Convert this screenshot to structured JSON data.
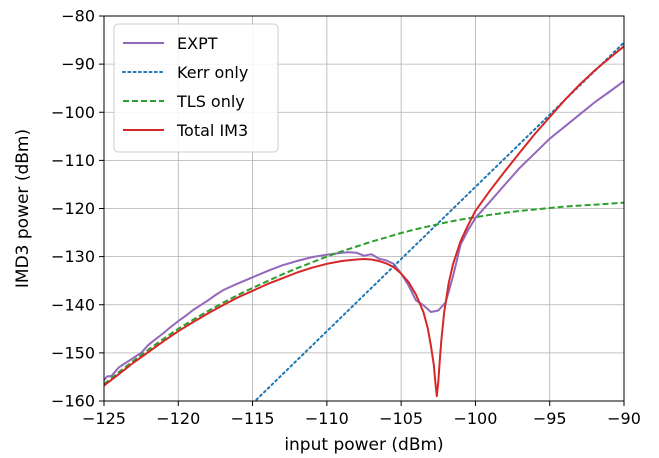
{
  "chart_data": {
    "type": "line",
    "xlabel": "input power (dBm)",
    "ylabel": "IMD3 power (dBm)",
    "xlim": [
      -125,
      -90
    ],
    "ylim": [
      -160,
      -80
    ],
    "xticks": [
      -125,
      -120,
      -115,
      -110,
      -105,
      -100,
      -95,
      -90
    ],
    "yticks": [
      -160,
      -150,
      -140,
      -130,
      -120,
      -110,
      -100,
      -90,
      -80
    ],
    "xtick_labels": [
      "−125",
      "−120",
      "−115",
      "−110",
      "−105",
      "−100",
      "−95",
      "−90"
    ],
    "ytick_labels": [
      "−160",
      "−150",
      "−140",
      "−130",
      "−120",
      "−110",
      "−100",
      "−90",
      "−80"
    ],
    "grid": true,
    "legend_position": "top-left",
    "series": [
      {
        "name": "EXPT",
        "color": "#9467bd",
        "style": "solid",
        "x": [
          -125,
          -124.8,
          -124.5,
          -124,
          -123.5,
          -123,
          -122.5,
          -122,
          -121.5,
          -121,
          -120.5,
          -120,
          -119.5,
          -119,
          -118.5,
          -118,
          -117.5,
          -117,
          -116.5,
          -116,
          -115,
          -114,
          -113,
          -112,
          -111,
          -110,
          -109,
          -108.5,
          -108,
          -107.5,
          -107,
          -106.5,
          -106,
          -105.5,
          -105,
          -104.5,
          -104,
          -103.5,
          -103,
          -102.5,
          -102,
          -101.5,
          -101,
          -100.5,
          -100,
          -99,
          -98,
          -97,
          -96,
          -95,
          -94,
          -93,
          -92,
          -91,
          -90
        ],
        "y": [
          -155.7,
          -154.9,
          -154.8,
          -153,
          -152,
          -151,
          -150,
          -148.3,
          -147.1,
          -145.9,
          -144.6,
          -143.4,
          -142.3,
          -141.1,
          -140.1,
          -139.1,
          -138,
          -137,
          -136.3,
          -135.6,
          -134.3,
          -133,
          -131.8,
          -130.9,
          -130.1,
          -129.6,
          -129.2,
          -129.1,
          -129.2,
          -129.8,
          -129.5,
          -130.4,
          -130.8,
          -131.5,
          -133.5,
          -136,
          -139.1,
          -140.1,
          -141.5,
          -141.2,
          -139.5,
          -134,
          -127.5,
          -124.5,
          -122,
          -118.5,
          -115,
          -111.5,
          -108.5,
          -105.5,
          -103,
          -100.5,
          -98,
          -95.8,
          -93.5
        ]
      },
      {
        "name": "Kerr only",
        "color": "#1f77b4",
        "style": "dotted",
        "x": [
          -115,
          -90
        ],
        "y": [
          -160.5,
          -85.5
        ]
      },
      {
        "name": "TLS only",
        "color": "#2ca02c",
        "style": "dashed",
        "x": [
          -125,
          -124,
          -123,
          -122,
          -121,
          -120,
          -119,
          -118,
          -117,
          -116,
          -115,
          -114,
          -113,
          -112,
          -111,
          -110,
          -109,
          -108,
          -107,
          -106,
          -105,
          -104,
          -103,
          -102,
          -101,
          -100,
          -99,
          -98,
          -97,
          -96,
          -95,
          -94,
          -93,
          -92,
          -91,
          -90
        ],
        "y": [
          -156.5,
          -154,
          -151.6,
          -149.3,
          -147.1,
          -145,
          -143.1,
          -141.3,
          -139.6,
          -138,
          -136.5,
          -135.1,
          -133.7,
          -132.4,
          -131.2,
          -130,
          -128.9,
          -127.9,
          -126.9,
          -126,
          -125.1,
          -124.3,
          -123.6,
          -122.9,
          -122.3,
          -121.8,
          -121.3,
          -120.9,
          -120.5,
          -120.2,
          -119.9,
          -119.6,
          -119.4,
          -119.2,
          -119,
          -118.8
        ]
      },
      {
        "name": "Total IM3",
        "color": "#d62728",
        "style": "solid",
        "x": [
          -125,
          -124,
          -123,
          -122,
          -121,
          -120,
          -119,
          -118,
          -117,
          -116,
          -115,
          -114,
          -113,
          -112,
          -111,
          -110,
          -109,
          -108,
          -107.5,
          -107,
          -106.5,
          -106,
          -105.5,
          -105,
          -104.5,
          -104,
          -103.5,
          -103.2,
          -103,
          -102.8,
          -102.7,
          -102.6,
          -102.5,
          -102.4,
          -102.3,
          -102.1,
          -101.8,
          -101.5,
          -101,
          -100.5,
          -100,
          -99,
          -98,
          -97,
          -96,
          -95,
          -94,
          -93,
          -92,
          -91,
          -90
        ],
        "y": [
          -156.8,
          -154.4,
          -152,
          -149.8,
          -147.6,
          -145.5,
          -143.6,
          -141.8,
          -140.1,
          -138.5,
          -137.1,
          -135.7,
          -134.5,
          -133.3,
          -132.3,
          -131.5,
          -130.9,
          -130.6,
          -130.5,
          -130.6,
          -130.9,
          -131.4,
          -132.2,
          -133.5,
          -135.3,
          -137.9,
          -141.5,
          -145,
          -148.5,
          -152.5,
          -156,
          -159,
          -156,
          -151.5,
          -147.5,
          -141.5,
          -135.5,
          -131.5,
          -126.8,
          -123.5,
          -120.5,
          -116.2,
          -112.2,
          -108.3,
          -104.5,
          -101,
          -97.5,
          -94.3,
          -91.4,
          -88.8,
          -86.3
        ]
      }
    ]
  }
}
